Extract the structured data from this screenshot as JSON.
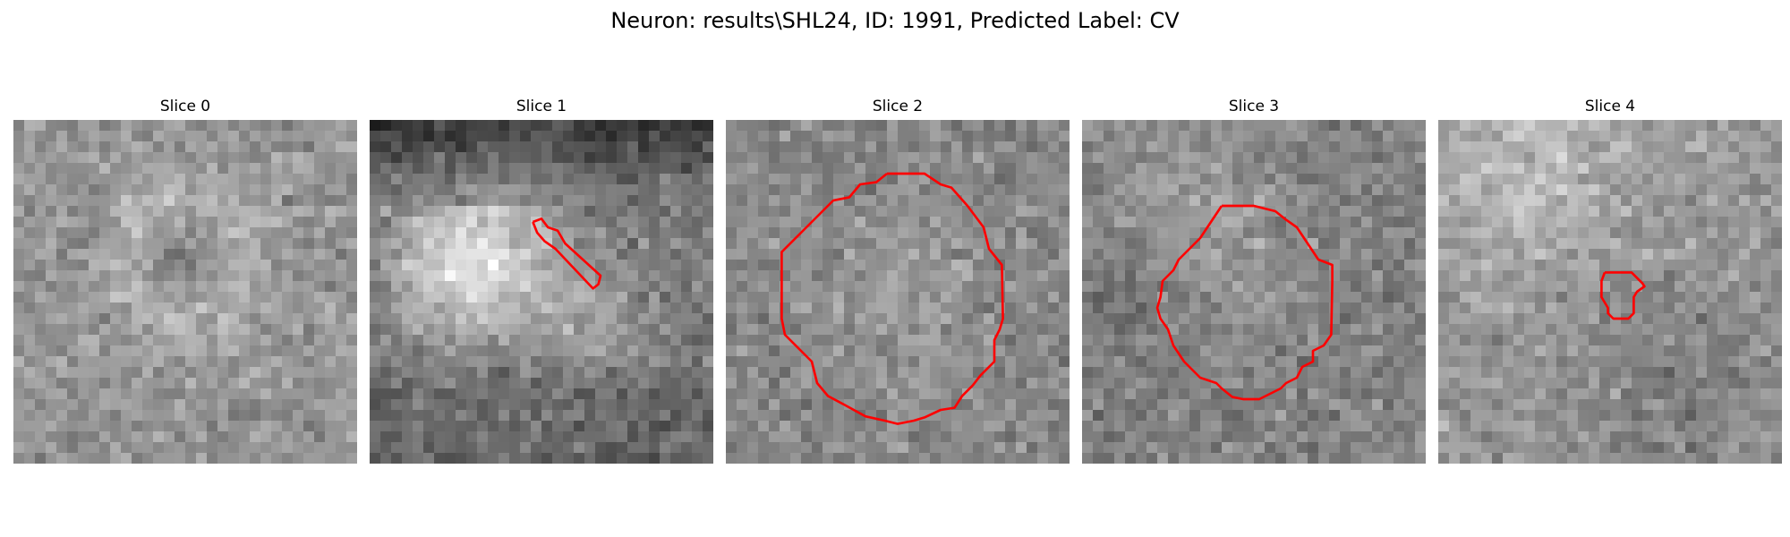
{
  "figure": {
    "title": "Neuron: results\\SHL24, ID: 1991, Predicted Label: CV"
  },
  "contour_color": "#ff0000",
  "grid_size": 32,
  "slices": [
    {
      "title": "Slice 0",
      "contour": []
    },
    {
      "title": "Slice 1",
      "contour": [
        [
          15.2,
          9.5
        ],
        [
          16.0,
          9.2
        ],
        [
          16.6,
          10.0
        ],
        [
          17.5,
          10.3
        ],
        [
          18.2,
          11.5
        ],
        [
          21.5,
          14.5
        ],
        [
          21.3,
          15.3
        ],
        [
          20.8,
          15.7
        ],
        [
          17.3,
          12.0
        ],
        [
          16.3,
          11.3
        ],
        [
          15.6,
          10.5
        ],
        [
          15.2,
          9.5
        ]
      ]
    },
    {
      "title": "Slice 2",
      "contour": [
        [
          15.0,
          5.0
        ],
        [
          18.5,
          5.0
        ],
        [
          20.0,
          6.0
        ],
        [
          21.0,
          6.3
        ],
        [
          22.5,
          8.0
        ],
        [
          24.0,
          10.0
        ],
        [
          24.5,
          12.0
        ],
        [
          25.7,
          13.5
        ],
        [
          25.8,
          18.5
        ],
        [
          25.5,
          19.5
        ],
        [
          25.0,
          20.5
        ],
        [
          25.0,
          22.5
        ],
        [
          23.7,
          23.8
        ],
        [
          23.0,
          24.7
        ],
        [
          22.0,
          25.7
        ],
        [
          21.3,
          26.8
        ],
        [
          20.0,
          27.0
        ],
        [
          18.5,
          27.7
        ],
        [
          17.5,
          28.0
        ],
        [
          16.0,
          28.3
        ],
        [
          14.8,
          28.0
        ],
        [
          13.0,
          27.6
        ],
        [
          11.0,
          26.5
        ],
        [
          9.5,
          25.7
        ],
        [
          8.5,
          24.5
        ],
        [
          8.0,
          22.5
        ],
        [
          7.0,
          21.5
        ],
        [
          5.5,
          20.0
        ],
        [
          5.2,
          18.5
        ],
        [
          5.2,
          12.3
        ],
        [
          7.0,
          10.5
        ],
        [
          8.5,
          9.0
        ],
        [
          10.0,
          7.5
        ],
        [
          11.5,
          7.2
        ],
        [
          12.5,
          6.0
        ],
        [
          14.0,
          5.8
        ],
        [
          15.0,
          5.0
        ]
      ]
    },
    {
      "title": "Slice 3",
      "contour": [
        [
          13.0,
          8.0
        ],
        [
          15.0,
          8.0
        ],
        [
          16.0,
          8.0
        ],
        [
          18.0,
          8.5
        ],
        [
          19.0,
          9.3
        ],
        [
          20.0,
          10.0
        ],
        [
          21.0,
          11.5
        ],
        [
          22.0,
          13.0
        ],
        [
          23.3,
          13.5
        ],
        [
          23.3,
          15.0
        ],
        [
          23.2,
          20.0
        ],
        [
          22.5,
          21.0
        ],
        [
          21.5,
          21.5
        ],
        [
          21.5,
          22.5
        ],
        [
          20.5,
          23.0
        ],
        [
          20.0,
          24.0
        ],
        [
          19.0,
          24.5
        ],
        [
          18.5,
          25.0
        ],
        [
          17.5,
          25.5
        ],
        [
          16.5,
          26.0
        ],
        [
          15.0,
          26.0
        ],
        [
          14.0,
          25.8
        ],
        [
          13.0,
          25.0
        ],
        [
          12.5,
          24.5
        ],
        [
          11.0,
          24.0
        ],
        [
          10.5,
          23.5
        ],
        [
          9.5,
          22.5
        ],
        [
          8.5,
          21.0
        ],
        [
          8.0,
          19.5
        ],
        [
          7.3,
          18.5
        ],
        [
          7.0,
          17.5
        ],
        [
          7.3,
          16.5
        ],
        [
          7.5,
          15.0
        ],
        [
          8.5,
          14.0
        ],
        [
          9.0,
          13.0
        ],
        [
          11.0,
          11.0
        ],
        [
          12.0,
          9.5
        ],
        [
          13.0,
          8.0
        ]
      ]
    },
    {
      "title": "Slice 4",
      "contour": [
        [
          15.5,
          14.2
        ],
        [
          18.0,
          14.2
        ],
        [
          18.5,
          14.7
        ],
        [
          19.0,
          15.2
        ],
        [
          19.2,
          15.5
        ],
        [
          18.5,
          16.0
        ],
        [
          18.2,
          16.5
        ],
        [
          18.2,
          18.0
        ],
        [
          17.7,
          18.5
        ],
        [
          16.3,
          18.5
        ],
        [
          15.8,
          18.0
        ],
        [
          15.8,
          17.5
        ],
        [
          15.2,
          16.5
        ],
        [
          15.2,
          15.0
        ],
        [
          15.5,
          14.2
        ]
      ]
    }
  ]
}
